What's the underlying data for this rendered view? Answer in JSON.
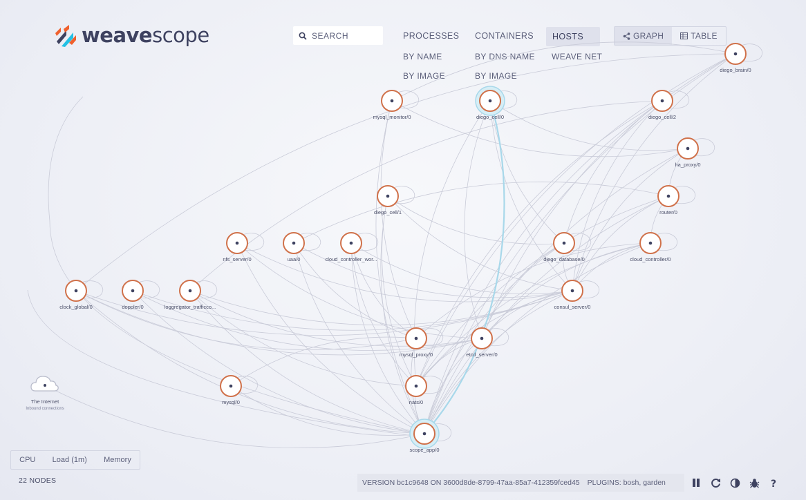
{
  "logo": {
    "bold": "weave",
    "light": "scope"
  },
  "search": {
    "placeholder": "SEARCH"
  },
  "topologies": {
    "processes": "PROCESSES",
    "processes_by_name": "BY NAME",
    "processes_by_image": "BY IMAGE",
    "containers": "CONTAINERS",
    "containers_by_dns": "BY DNS NAME",
    "containers_by_image": "BY IMAGE",
    "hosts": "HOSTS",
    "weave_net": "WEAVE NET"
  },
  "view_modes": {
    "graph": "GRAPH",
    "table": "TABLE"
  },
  "nodes": [
    {
      "id": "diego_brain",
      "label": "diego_brain/0"
    },
    {
      "id": "mysql_monitor",
      "label": "mysql_monitor/0"
    },
    {
      "id": "diego_cell0",
      "label": "diego_cell/0",
      "highlight": true
    },
    {
      "id": "diego_cell2",
      "label": "diego_cell/2"
    },
    {
      "id": "ha_proxy",
      "label": "ha_proxy/0"
    },
    {
      "id": "diego_cell1",
      "label": "diego_cell/1"
    },
    {
      "id": "router",
      "label": "router/0"
    },
    {
      "id": "nfs_server",
      "label": "nfs_server/0"
    },
    {
      "id": "uaa",
      "label": "uaa/0"
    },
    {
      "id": "cc_worker",
      "label": "cloud_controller_wor..."
    },
    {
      "id": "diego_database",
      "label": "diego_database/0"
    },
    {
      "id": "cloud_controller",
      "label": "cloud_controller/0"
    },
    {
      "id": "clock_global",
      "label": "clock_global/0"
    },
    {
      "id": "doppler",
      "label": "doppler/0"
    },
    {
      "id": "loggregator",
      "label": "loggregator_trafficco..."
    },
    {
      "id": "consul_server",
      "label": "consul_server/0"
    },
    {
      "id": "mysql_proxy",
      "label": "mysql_proxy/0"
    },
    {
      "id": "etcd_server",
      "label": "etcd_server/0"
    },
    {
      "id": "mysql",
      "label": "mysql/0"
    },
    {
      "id": "nats",
      "label": "nats/0"
    },
    {
      "id": "scope_app",
      "label": "scope_app/0",
      "highlight": true
    }
  ],
  "internet": {
    "label": "The Internet",
    "sublabel": "Inbound connections"
  },
  "metrics": {
    "cpu": "CPU",
    "load": "Load (1m)",
    "memory": "Memory"
  },
  "node_count": "22 NODES",
  "footer": {
    "version": "VERSION bc1c9648 ON 3600d8de-8799-47aa-85a7-412359fced45",
    "plugins": "PLUGINS: bosh, garden"
  },
  "colors": {
    "node_ring": "#d0714a",
    "node_dot": "#3e4260",
    "edge": "#c9cbd8",
    "highlight_edge": "#a8d8ea"
  }
}
